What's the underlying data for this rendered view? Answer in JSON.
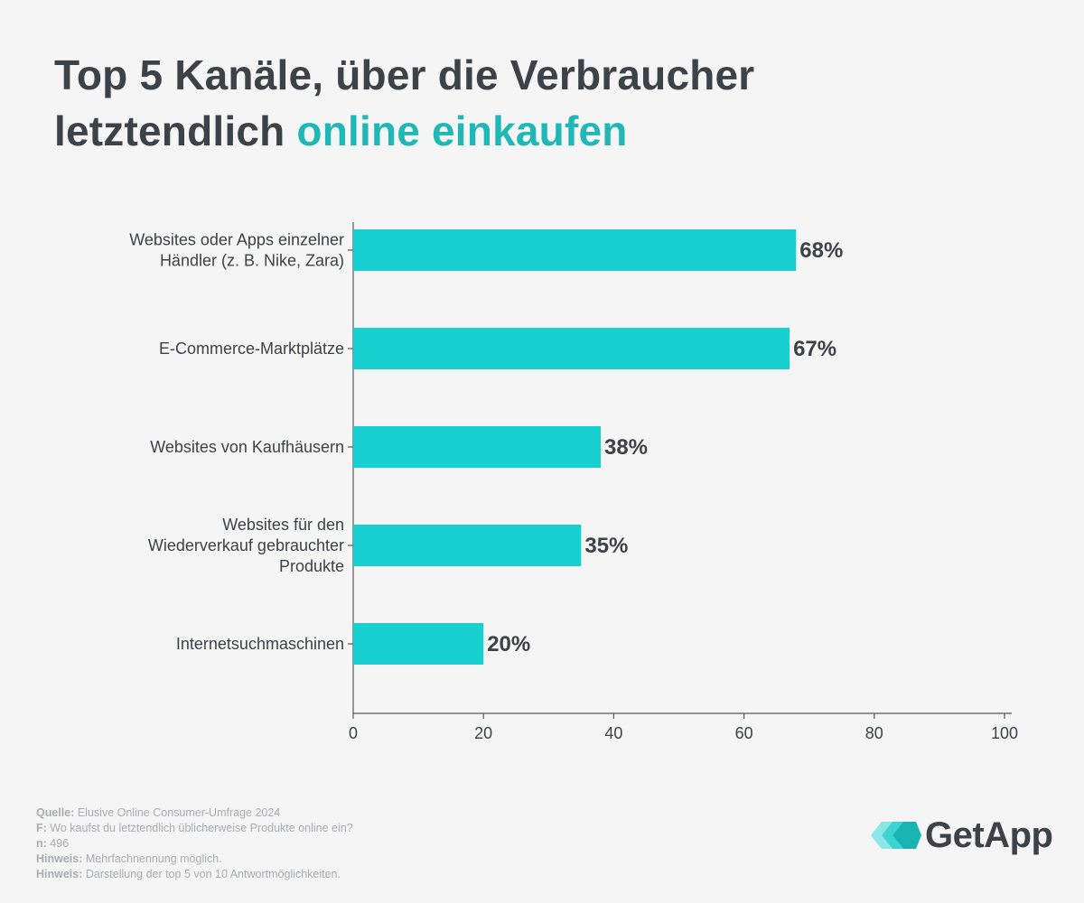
{
  "title": {
    "line1": "Top 5 Kanäle, über die Verbraucher",
    "line2_plain": "letztendlich ",
    "line2_accent": "online einkaufen"
  },
  "colors": {
    "bar": "#17d0cf",
    "accent": "#20b8b6",
    "text": "#3d4249",
    "axis": "#55595e",
    "footer": "#a9acb0"
  },
  "chart_data": {
    "type": "bar",
    "orientation": "horizontal",
    "categories": [
      [
        "Websites oder Apps einzelner",
        "Händler (z. B. Nike, Zara)"
      ],
      [
        "E-Commerce-Marktplätze"
      ],
      [
        "Websites von Kaufhäusern"
      ],
      [
        "Websites für den",
        "Wiederverkauf gebrauchter",
        "Produkte"
      ],
      [
        "Internetsuchmaschinen"
      ]
    ],
    "values": [
      68,
      67,
      38,
      35,
      20
    ],
    "value_labels": [
      "68%",
      "67%",
      "38%",
      "35%",
      "20%"
    ],
    "xlim": [
      0,
      100
    ],
    "xticks": [
      0,
      20,
      40,
      60,
      80,
      100
    ],
    "grid": false,
    "legend": "none"
  },
  "footer": [
    {
      "key": "Quelle:",
      "text": " Elusive Online Consumer-Umfrage 2024"
    },
    {
      "key": "F:",
      "text": " Wo kaufst du letztendlich üblicherweise Produkte online ein?"
    },
    {
      "key": "n:",
      "text": " 496"
    },
    {
      "key": "Hinweis:",
      "text": " Mehrfachnennung möglich."
    },
    {
      "key": "Hinweis:",
      "text": " Darstellung der top 5 von 10 Antwortmöglichkeiten."
    }
  ],
  "logo": {
    "text": "GetApp",
    "icon": "getapp-chevrons-icon"
  }
}
